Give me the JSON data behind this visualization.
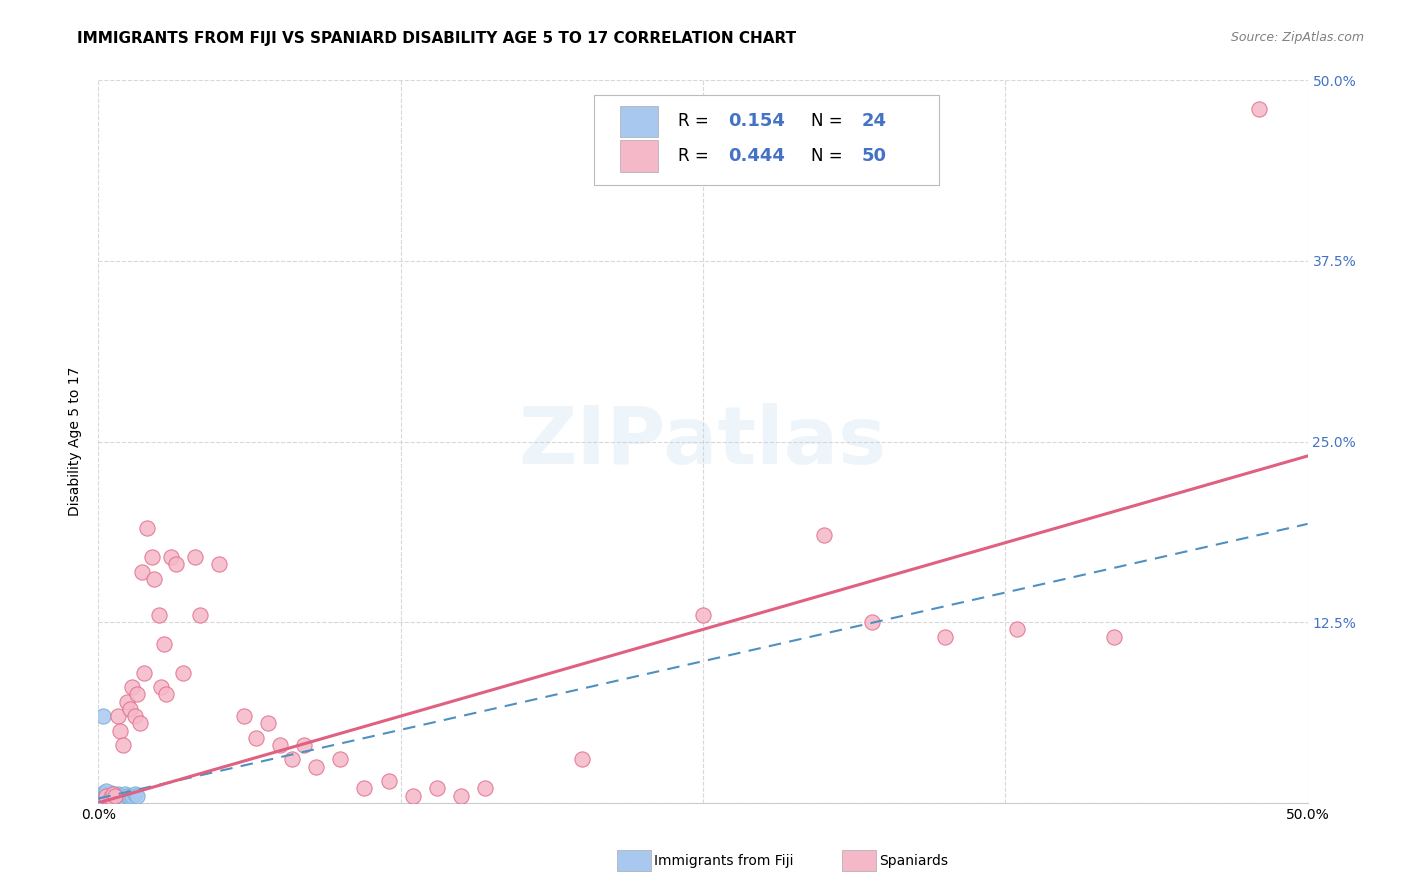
{
  "title": "IMMIGRANTS FROM FIJI VS SPANIARD DISABILITY AGE 5 TO 17 CORRELATION CHART",
  "source": "Source: ZipAtlas.com",
  "ylabel": "Disability Age 5 to 17",
  "xlim": [
    0,
    0.5
  ],
  "ylim": [
    0,
    0.5
  ],
  "fiji_color": "#a8c8f0",
  "fiji_edge_color": "#7bafd4",
  "spaniard_color": "#f5b8c8",
  "spaniard_edge_color": "#e07090",
  "fiji_line_color": "#5090c0",
  "spaniard_line_color": "#e06080",
  "watermark": "ZIPatlas",
  "fiji_points": [
    [
      0.001,
      0.005
    ],
    [
      0.002,
      0.003
    ],
    [
      0.002,
      0.007
    ],
    [
      0.003,
      0.004
    ],
    [
      0.003,
      0.006
    ],
    [
      0.004,
      0.003
    ],
    [
      0.004,
      0.005
    ],
    [
      0.005,
      0.004
    ],
    [
      0.005,
      0.007
    ],
    [
      0.006,
      0.004
    ],
    [
      0.006,
      0.006
    ],
    [
      0.007,
      0.005
    ],
    [
      0.008,
      0.004
    ],
    [
      0.008,
      0.006
    ],
    [
      0.009,
      0.005
    ],
    [
      0.01,
      0.004
    ],
    [
      0.011,
      0.006
    ],
    [
      0.012,
      0.005
    ],
    [
      0.013,
      0.004
    ],
    [
      0.014,
      0.005
    ],
    [
      0.015,
      0.006
    ],
    [
      0.016,
      0.005
    ],
    [
      0.002,
      0.06
    ],
    [
      0.003,
      0.008
    ]
  ],
  "spaniard_points": [
    [
      0.003,
      0.005
    ],
    [
      0.005,
      0.004
    ],
    [
      0.006,
      0.006
    ],
    [
      0.007,
      0.005
    ],
    [
      0.008,
      0.06
    ],
    [
      0.009,
      0.05
    ],
    [
      0.01,
      0.04
    ],
    [
      0.012,
      0.07
    ],
    [
      0.013,
      0.065
    ],
    [
      0.014,
      0.08
    ],
    [
      0.015,
      0.06
    ],
    [
      0.016,
      0.075
    ],
    [
      0.017,
      0.055
    ],
    [
      0.018,
      0.16
    ],
    [
      0.019,
      0.09
    ],
    [
      0.02,
      0.19
    ],
    [
      0.022,
      0.17
    ],
    [
      0.023,
      0.155
    ],
    [
      0.025,
      0.13
    ],
    [
      0.026,
      0.08
    ],
    [
      0.027,
      0.11
    ],
    [
      0.028,
      0.075
    ],
    [
      0.03,
      0.17
    ],
    [
      0.032,
      0.165
    ],
    [
      0.035,
      0.09
    ],
    [
      0.04,
      0.17
    ],
    [
      0.042,
      0.13
    ],
    [
      0.05,
      0.165
    ],
    [
      0.06,
      0.06
    ],
    [
      0.065,
      0.045
    ],
    [
      0.07,
      0.055
    ],
    [
      0.075,
      0.04
    ],
    [
      0.08,
      0.03
    ],
    [
      0.085,
      0.04
    ],
    [
      0.09,
      0.025
    ],
    [
      0.1,
      0.03
    ],
    [
      0.11,
      0.01
    ],
    [
      0.12,
      0.015
    ],
    [
      0.13,
      0.005
    ],
    [
      0.14,
      0.01
    ],
    [
      0.15,
      0.005
    ],
    [
      0.16,
      0.01
    ],
    [
      0.2,
      0.03
    ],
    [
      0.25,
      0.13
    ],
    [
      0.3,
      0.185
    ],
    [
      0.32,
      0.125
    ],
    [
      0.35,
      0.115
    ],
    [
      0.38,
      0.12
    ],
    [
      0.42,
      0.115
    ],
    [
      0.48,
      0.48
    ]
  ],
  "fiji_slope": 0.38,
  "fiji_intercept": 0.003,
  "spaniard_slope": 0.48,
  "spaniard_intercept": 0.0,
  "background_color": "#ffffff",
  "grid_color": "#d8d8d8",
  "title_fontsize": 11,
  "axis_label_fontsize": 10,
  "tick_fontsize": 10,
  "right_tick_color": "#4472c4",
  "legend_r_fiji": "0.154",
  "legend_n_fiji": "24",
  "legend_r_spaniard": "0.444",
  "legend_n_spaniard": "50"
}
